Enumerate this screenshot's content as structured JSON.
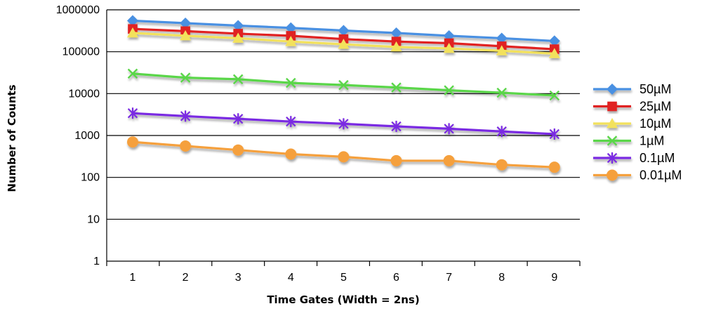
{
  "chart_data": {
    "type": "line",
    "scale": "log",
    "xlabel": "Time Gates (Width = 2ns)",
    "ylabel": "Number of Counts",
    "x": [
      1,
      2,
      3,
      4,
      5,
      6,
      7,
      8,
      9
    ],
    "x_tick_labels": [
      "1",
      "2",
      "3",
      "4",
      "5",
      "6",
      "7",
      "8",
      "9"
    ],
    "y_ticks": [
      1,
      10,
      100,
      1000,
      10000,
      100000,
      1000000
    ],
    "y_tick_labels": [
      "1",
      "10",
      "100",
      "1000",
      "10000",
      "100000",
      "1000000"
    ],
    "ylim": [
      1,
      1000000
    ],
    "grid": true,
    "legend_position": "right",
    "series": [
      {
        "name": "50µM",
        "color": "#4a90e2",
        "marker": "diamond",
        "values": [
          550000,
          480000,
          420000,
          370000,
          320000,
          280000,
          240000,
          210000,
          180000
        ]
      },
      {
        "name": "25µM",
        "color": "#e02020",
        "marker": "square",
        "values": [
          350000,
          310000,
          270000,
          240000,
          200000,
          175000,
          160000,
          135000,
          115000
        ]
      },
      {
        "name": "10µM",
        "color": "#f2e15c",
        "marker": "triangle",
        "values": [
          280000,
          240000,
          210000,
          175000,
          150000,
          130000,
          120000,
          105000,
          90000
        ]
      },
      {
        "name": "1µM",
        "color": "#5ad648",
        "marker": "x",
        "values": [
          30000,
          24000,
          22000,
          18000,
          16000,
          14000,
          12000,
          10500,
          9000
        ]
      },
      {
        "name": "0.1µM",
        "color": "#7a2be2",
        "marker": "asterisk",
        "values": [
          3400,
          2900,
          2500,
          2150,
          1900,
          1650,
          1450,
          1250,
          1080
        ]
      },
      {
        "name": "0.01µM",
        "color": "#f5a03c",
        "marker": "circle",
        "values": [
          700,
          560,
          450,
          360,
          310,
          250,
          250,
          200,
          175
        ]
      }
    ]
  }
}
